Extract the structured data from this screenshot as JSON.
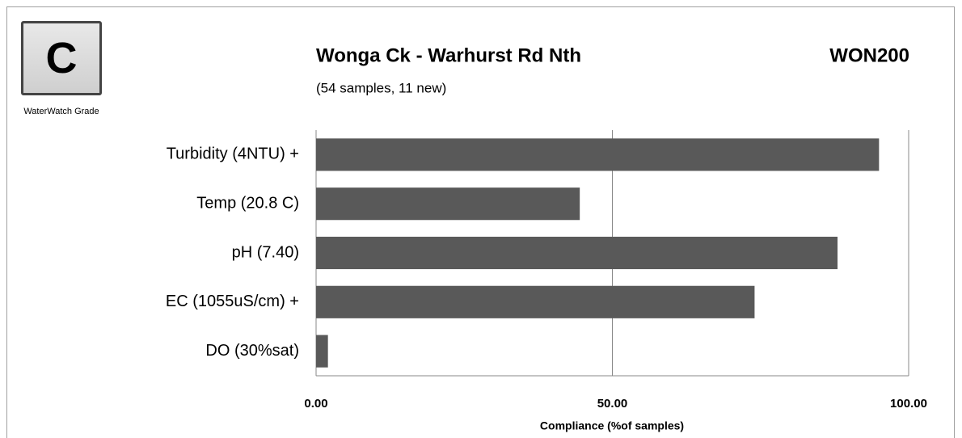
{
  "chart_data": {
    "type": "bar",
    "orientation": "horizontal",
    "title": "Wonga Ck - Warhurst Rd Nth",
    "site_code": "WON200",
    "subtitle": "(54 samples, 11 new)",
    "grade": "C",
    "grade_label": "WaterWatch Grade",
    "x_label": "Compliance (%of samples)",
    "categories": [
      "Turbidity (4NTU) +",
      "Temp (20.8 C)",
      "pH (7.40)",
      "EC (1055uS/cm) +",
      "DO (30%sat)"
    ],
    "values": [
      95,
      44.5,
      88,
      74,
      2
    ],
    "color": "#595959",
    "xlim": [
      0,
      100
    ],
    "xticks": [
      {
        "value": 0,
        "label": "0.00"
      },
      {
        "value": 50,
        "label": "50.00"
      },
      {
        "value": 100,
        "label": "100.00"
      }
    ],
    "grid": true
  }
}
